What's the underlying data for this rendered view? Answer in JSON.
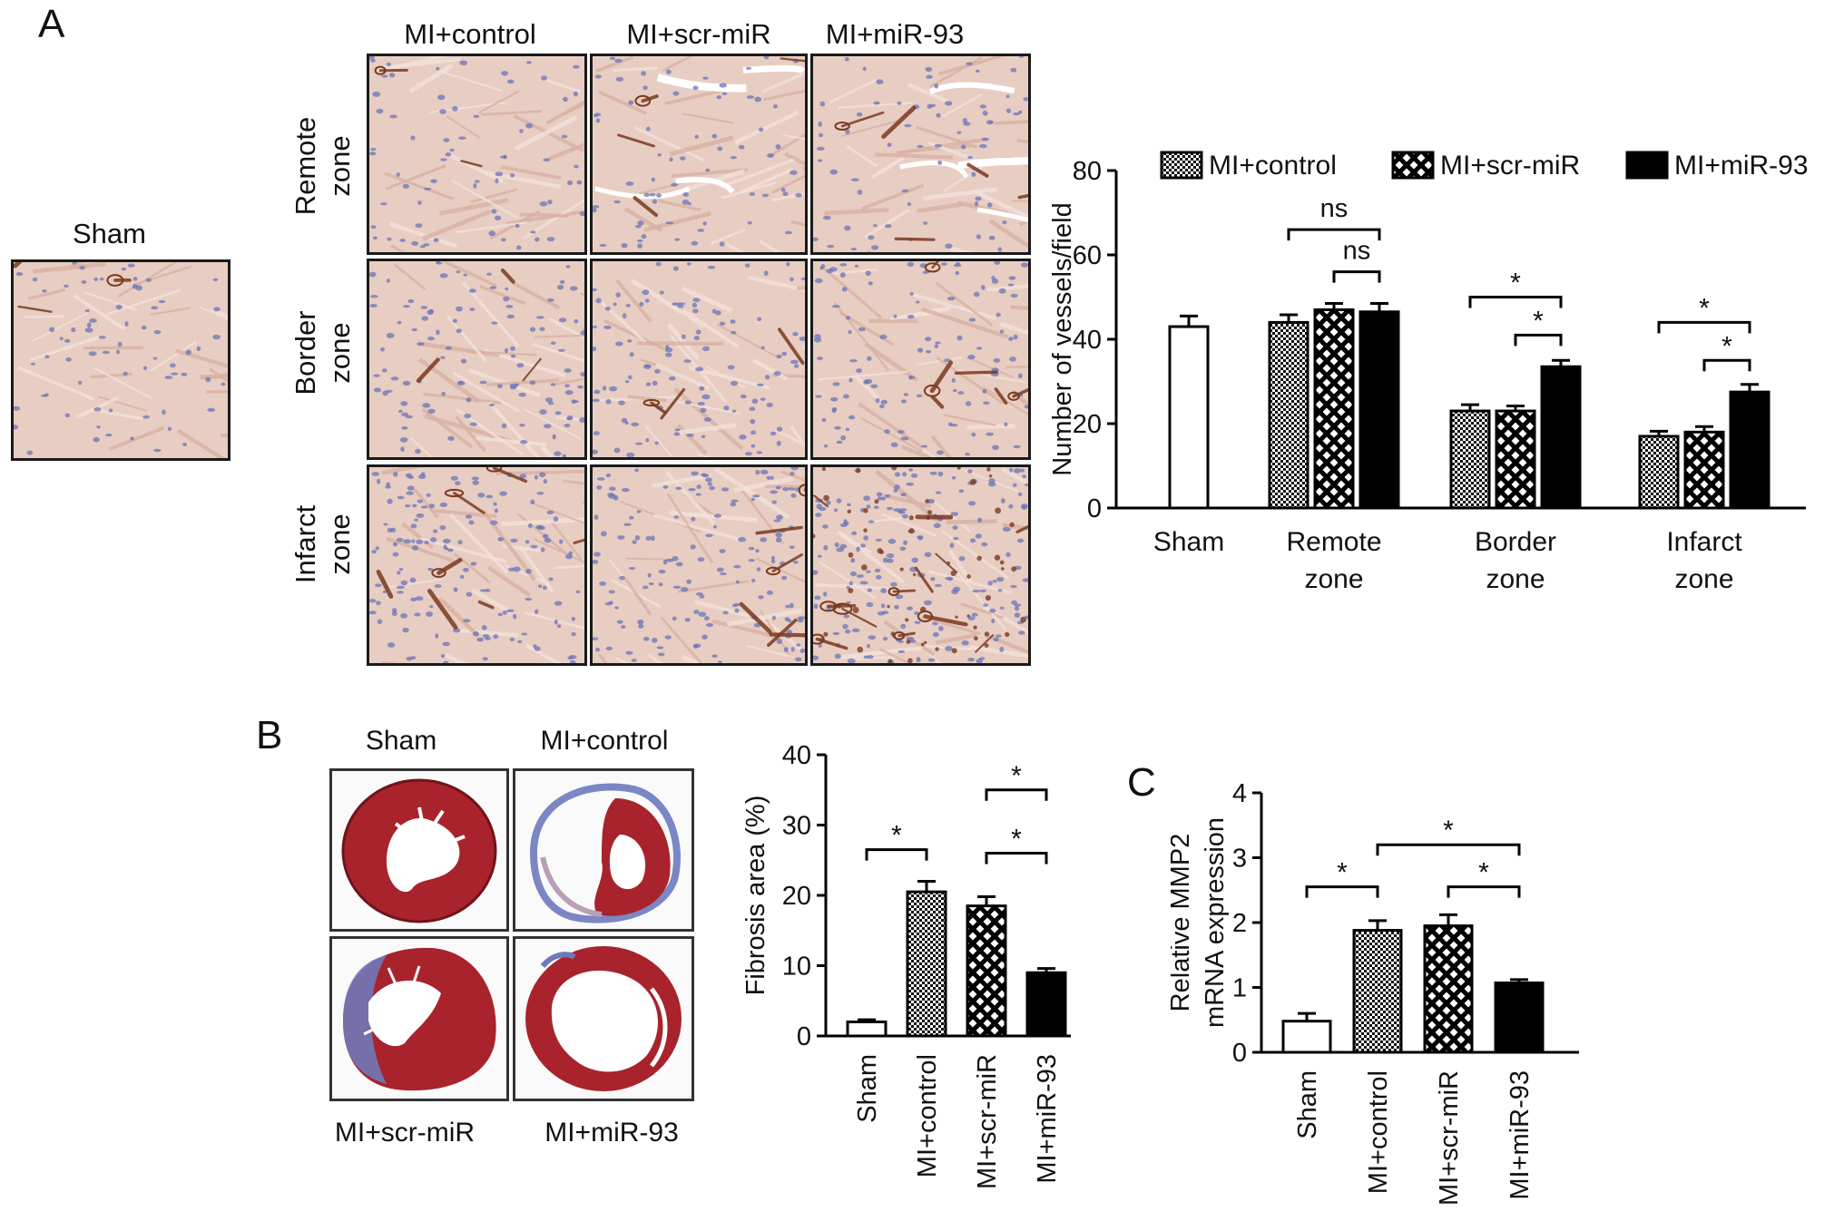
{
  "panels": {
    "a": {
      "letter": "A",
      "sham_label": "Sham",
      "columns": [
        "MI+control",
        "MI+scr-miR",
        "MI+miR-93"
      ],
      "rows": [
        {
          "line1": "Remote",
          "line2": "zone"
        },
        {
          "line1": "Border",
          "line2": "zone"
        },
        {
          "line1": "Infarct",
          "line2": "zone"
        }
      ]
    },
    "b": {
      "letter": "B",
      "heart_labels": [
        "Sham",
        "MI+control",
        "MI+scr-miR",
        "MI+miR-93"
      ]
    },
    "c": {
      "letter": "C"
    }
  },
  "colors": {
    "bar_outline": "#000000",
    "sham_fill": "#ffffff",
    "control_pattern": "dots",
    "scr_pattern": "crosshatch",
    "mir93_fill": "#000000",
    "tissue_background": "#e8cdc2",
    "nuclei": "#6a74b8",
    "vessel_stain": "#7a3a20",
    "heart_red": "#a8232c",
    "fibrosis_blue": "#7b86c4"
  },
  "chart_data": [
    {
      "type": "bar",
      "panel": "A",
      "ylabel": "Number of vessels/field",
      "xlabel": "",
      "ylim": [
        0,
        80
      ],
      "yticks": [
        0,
        20,
        40,
        60,
        80
      ],
      "grid": false,
      "legend": "top",
      "groups": [
        {
          "line1": "Sham",
          "line2": ""
        },
        {
          "line1": "Remote",
          "line2": "zone"
        },
        {
          "line1": "Border",
          "line2": "zone"
        },
        {
          "line1": "Infarct",
          "line2": "zone"
        }
      ],
      "series": [
        {
          "name": "Sham",
          "values": [
            43,
            null,
            null,
            null
          ],
          "errors": [
            2.5,
            null,
            null,
            null
          ]
        },
        {
          "name": "MI+control",
          "values": [
            null,
            44,
            23,
            17
          ],
          "errors": [
            null,
            1.8,
            1.5,
            1.2
          ]
        },
        {
          "name": "MI+scr-miR",
          "values": [
            null,
            47,
            23,
            18
          ],
          "errors": [
            null,
            1.5,
            1.2,
            1.3
          ]
        },
        {
          "name": "MI+miR-93",
          "values": [
            null,
            46.5,
            33.5,
            27.5
          ],
          "errors": [
            null,
            2.0,
            1.5,
            1.8
          ]
        }
      ],
      "legend_entries": [
        "MI+control",
        "MI+scr-miR",
        "MI+miR-93"
      ],
      "annotations": [
        {
          "group": 1,
          "from": 1,
          "to": 3,
          "text": "ns",
          "y": 66
        },
        {
          "group": 1,
          "from": 2,
          "to": 3,
          "text": "ns",
          "y": 56
        },
        {
          "group": 2,
          "from": 1,
          "to": 3,
          "text": "*",
          "y": 50
        },
        {
          "group": 2,
          "from": 2,
          "to": 3,
          "text": "*",
          "y": 41
        },
        {
          "group": 3,
          "from": 1,
          "to": 3,
          "text": "*",
          "y": 44
        },
        {
          "group": 3,
          "from": 2,
          "to": 3,
          "text": "*",
          "y": 35
        }
      ]
    },
    {
      "type": "bar",
      "panel": "B",
      "ylabel": "Fibrosis area (%)",
      "xlabel": "",
      "ylim": [
        0,
        40
      ],
      "yticks": [
        0,
        10,
        20,
        30,
        40
      ],
      "grid": false,
      "categories": [
        "Sham",
        "MI+control",
        "MI+scr-miR",
        "MI+miR-93"
      ],
      "values": [
        2,
        20.5,
        18.5,
        9
      ],
      "errors": [
        0.3,
        1.5,
        1.3,
        0.6
      ],
      "annotations": [
        {
          "from": 0,
          "to": 1,
          "text": "*",
          "y": 26.5
        },
        {
          "from": 2,
          "to": 3,
          "text": "*",
          "y": 35
        },
        {
          "from": 2,
          "to": 3,
          "text": "*",
          "y": 26
        }
      ]
    },
    {
      "type": "bar",
      "panel": "C",
      "ylabel": "Relative MMP2",
      "ylabel2": "mRNA expression",
      "xlabel": "",
      "ylim": [
        0,
        4
      ],
      "yticks": [
        0,
        1,
        2,
        3,
        4
      ],
      "grid": false,
      "categories": [
        "Sham",
        "MI+control",
        "MI+scr-miR",
        "MI+miR-93"
      ],
      "values": [
        0.48,
        1.88,
        1.95,
        1.07
      ],
      "errors": [
        0.12,
        0.15,
        0.17,
        0.05
      ],
      "annotations": [
        {
          "from": 0,
          "to": 1,
          "text": "*",
          "y": 2.55
        },
        {
          "from": 1,
          "to": 3,
          "text": "*",
          "y": 3.2
        },
        {
          "from": 2,
          "to": 3,
          "text": "*",
          "y": 2.55
        }
      ]
    }
  ]
}
